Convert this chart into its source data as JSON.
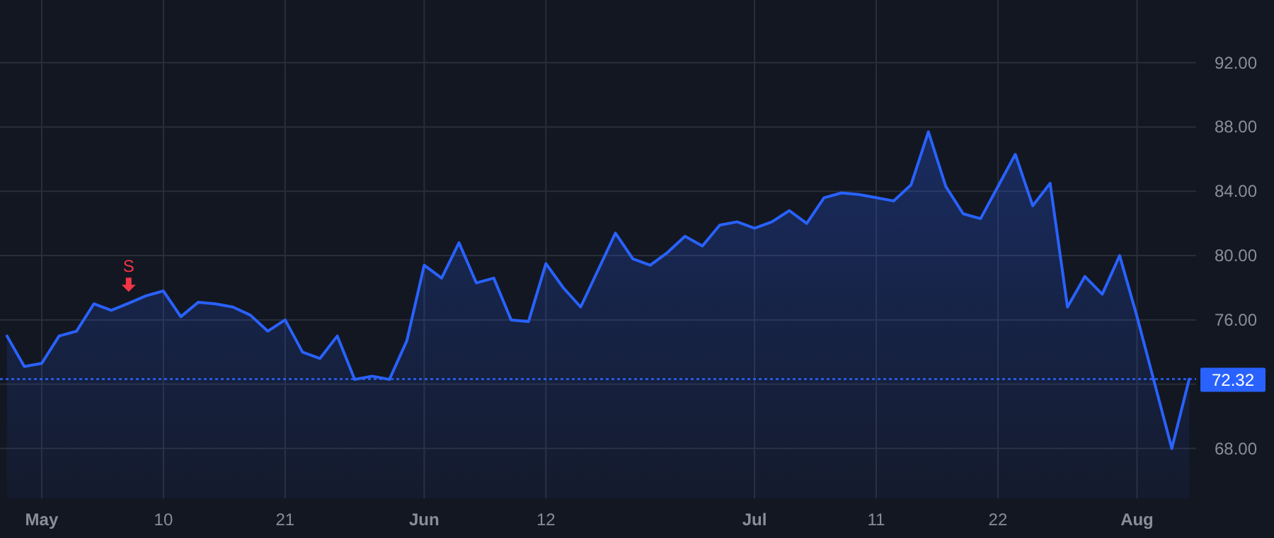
{
  "chart_data": {
    "type": "area",
    "categories": [
      null,
      null,
      "May",
      null,
      null,
      null,
      null,
      null,
      null,
      "10",
      null,
      null,
      null,
      null,
      null,
      null,
      "21",
      null,
      null,
      null,
      null,
      null,
      null,
      null,
      "Jun",
      null,
      null,
      null,
      null,
      null,
      null,
      "12",
      null,
      null,
      null,
      null,
      null,
      null,
      null,
      null,
      null,
      null,
      null,
      "Jul",
      null,
      null,
      null,
      null,
      null,
      null,
      "11",
      null,
      null,
      null,
      null,
      null,
      null,
      "22",
      null,
      null,
      null,
      null,
      null,
      null,
      null,
      "Aug",
      null,
      null,
      null
    ],
    "series": [
      {
        "color": "#2962ff",
        "values": [
          75.0,
          73.1,
          73.3,
          75.0,
          75.3,
          77.0,
          76.6,
          77.04,
          77.5,
          77.8,
          76.2,
          77.1,
          77.0,
          76.8,
          76.3,
          75.3,
          76.0,
          74.0,
          73.6,
          75.0,
          72.3,
          72.5,
          72.3,
          74.7,
          79.4,
          78.6,
          80.8,
          78.3,
          78.6,
          76.0,
          75.9,
          79.5,
          78.0,
          76.8,
          79.1,
          81.4,
          79.8,
          79.4,
          80.2,
          81.2,
          80.6,
          81.9,
          82.1,
          81.7,
          82.1,
          82.8,
          82.0,
          83.6,
          83.9,
          83.8,
          83.6,
          83.4,
          84.4,
          87.7,
          84.3,
          82.6,
          82.3,
          84.3,
          86.3,
          83.1,
          84.5,
          76.8,
          78.7,
          77.6,
          80.0,
          76.2,
          72.1,
          68.0,
          72.32
        ]
      }
    ],
    "ylim": [
      64.9,
      95.9
    ],
    "yticks": [
      {
        "value": 68,
        "label": "68.00"
      },
      {
        "value": 72,
        "label": null
      },
      {
        "value": 76,
        "label": "76.00"
      },
      {
        "value": 80,
        "label": "80.00"
      },
      {
        "value": 84,
        "label": "84.00"
      },
      {
        "value": 88,
        "label": "88.00"
      },
      {
        "value": 92,
        "label": "92.00"
      }
    ],
    "ref_lines": [
      {
        "axis": "y",
        "value": 72.32,
        "label": "72.32",
        "color": "#2962ff",
        "line_style": "dotted"
      }
    ],
    "annotations": [
      {
        "text": "S",
        "y": 77.04
      }
    ],
    "grid": true,
    "line_style": "solid",
    "marker": "none"
  }
}
